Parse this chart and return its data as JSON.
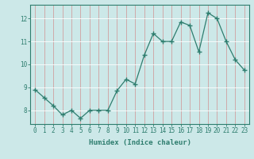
{
  "x": [
    0,
    1,
    2,
    3,
    4,
    5,
    6,
    7,
    8,
    9,
    10,
    11,
    12,
    13,
    14,
    15,
    16,
    17,
    18,
    19,
    20,
    21,
    22,
    23
  ],
  "y": [
    8.9,
    8.55,
    8.2,
    7.8,
    8.0,
    7.65,
    8.0,
    8.0,
    8.0,
    8.85,
    9.35,
    9.15,
    10.4,
    11.35,
    11.0,
    11.0,
    11.85,
    11.7,
    10.55,
    12.25,
    12.0,
    11.0,
    10.2,
    9.75
  ],
  "line_color": "#2e7d6e",
  "marker": "+",
  "marker_size": 4,
  "bg_color": "#cce8e8",
  "grid_color": "#b0d0d0",
  "tick_color": "#2e7d6e",
  "label_color": "#2e7d6e",
  "xlabel": "Humidex (Indice chaleur)",
  "ylim": [
    7.4,
    12.6
  ],
  "yticks": [
    8,
    9,
    10,
    11,
    12
  ],
  "xticks": [
    0,
    1,
    2,
    3,
    4,
    5,
    6,
    7,
    8,
    9,
    10,
    11,
    12,
    13,
    14,
    15,
    16,
    17,
    18,
    19,
    20,
    21,
    22,
    23
  ],
  "tick_fontsize": 5.5,
  "label_fontsize": 6.5
}
